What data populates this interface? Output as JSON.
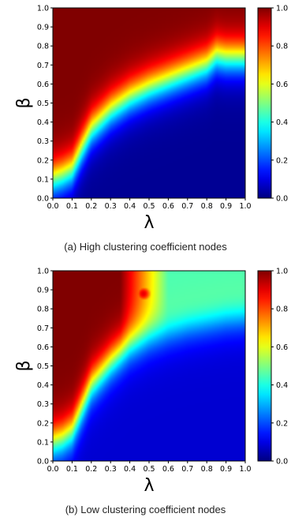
{
  "captions": {
    "a": "(a) High clustering coefficient nodes",
    "b": "(b) Low clustering coefficient nodes"
  },
  "chart_data": [
    {
      "type": "heatmap",
      "xlabel": "λ",
      "ylabel": "β",
      "xlim": [
        0.0,
        1.0
      ],
      "ylim": [
        0.0,
        1.0
      ],
      "x_ticks": [
        "0.0",
        "0.1",
        "0.2",
        "0.3",
        "0.4",
        "0.5",
        "0.6",
        "0.7",
        "0.8",
        "0.9",
        "1.0"
      ],
      "y_ticks": [
        "0.0",
        "0.1",
        "0.2",
        "0.3",
        "0.4",
        "0.5",
        "0.6",
        "0.7",
        "0.8",
        "0.9",
        "1.0"
      ],
      "colorbar": {
        "range": [
          0.0,
          1.0
        ],
        "ticks": [
          "0.0",
          "0.2",
          "0.4",
          "0.6",
          "0.8",
          "1.0"
        ],
        "colormap": "jet"
      },
      "boundary": {
        "lambda": [
          0.0,
          0.05,
          0.1,
          0.15,
          0.2,
          0.3,
          0.4,
          0.5,
          0.6,
          0.7,
          0.8,
          0.85,
          0.9,
          1.0
        ],
        "beta": [
          0.1,
          0.12,
          0.15,
          0.26,
          0.36,
          0.46,
          0.53,
          0.58,
          0.62,
          0.66,
          0.7,
          0.75,
          0.74,
          0.74
        ]
      },
      "background_value": 0.02
    },
    {
      "type": "heatmap",
      "xlabel": "λ",
      "ylabel": "β",
      "xlim": [
        0.0,
        1.0
      ],
      "ylim": [
        0.0,
        1.0
      ],
      "x_ticks": [
        "0.0",
        "0.1",
        "0.2",
        "0.3",
        "0.4",
        "0.5",
        "0.6",
        "0.7",
        "0.8",
        "0.9",
        "1.0"
      ],
      "y_ticks": [
        "0.0",
        "0.1",
        "0.2",
        "0.3",
        "0.4",
        "0.5",
        "0.6",
        "0.7",
        "0.8",
        "0.9",
        "1.0"
      ],
      "colorbar": {
        "range": [
          0.0,
          1.0
        ],
        "ticks": [
          "0.0",
          "0.2",
          "0.4",
          "0.6",
          "0.8",
          "1.0"
        ],
        "colormap": "jet"
      },
      "boundary": {
        "lambda": [
          0.0,
          0.05,
          0.1,
          0.15,
          0.2,
          0.3,
          0.4,
          0.5,
          0.6,
          0.7,
          0.8,
          0.9,
          1.0
        ],
        "beta": [
          0.1,
          0.12,
          0.16,
          0.28,
          0.4,
          0.52,
          0.62,
          0.68,
          0.72,
          0.75,
          0.77,
          0.79,
          0.8
        ]
      },
      "background_value": 0.08,
      "hotspot": {
        "lambda": 0.47,
        "beta": 0.88,
        "value": 0.9
      }
    }
  ]
}
